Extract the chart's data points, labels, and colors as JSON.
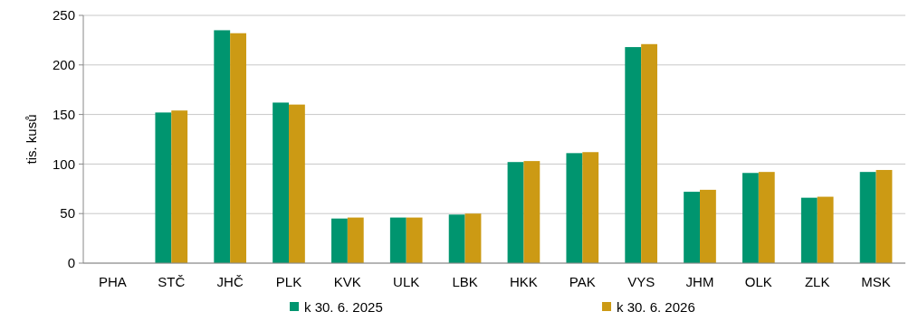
{
  "chart_data": {
    "type": "bar",
    "ylabel": "tis. kusů",
    "categories": [
      "PHA",
      "STČ",
      "JHČ",
      "PLK",
      "KVK",
      "ULK",
      "LBK",
      "HKK",
      "PAK",
      "VYS",
      "JHM",
      "OLK",
      "ZLK",
      "MSK"
    ],
    "series": [
      {
        "name": "k 30. 6. 2025",
        "color": "#00956f",
        "values": [
          null,
          152,
          235,
          162,
          45,
          46,
          49,
          102,
          111,
          218,
          72,
          91,
          66,
          92
        ]
      },
      {
        "name": "k 30. 6. 2026",
        "color": "#cc9a14",
        "values": [
          null,
          154,
          232,
          160,
          46,
          46,
          50,
          103,
          112,
          221,
          74,
          92,
          67,
          94
        ]
      }
    ],
    "ylim": [
      0,
      250
    ],
    "yticks": [
      0,
      50,
      100,
      150,
      200,
      250
    ],
    "grid": "y",
    "legend": "bottom"
  }
}
